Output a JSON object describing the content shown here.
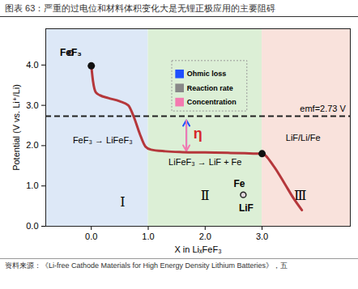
{
  "chart_data": {
    "type": "line",
    "title": "图表 63：严重的过电位和材料体积变化大是无锂正极应用的主要阻碍",
    "caption": "资料来源：《Li-free Cathode Materials for High Energy Density Lithium Batteries》，五",
    "x_label": "X in LiₓFeF₃",
    "y_label": "Potential (V vs. Li⁺/Li)",
    "xlim": [
      -0.8,
      4.55
    ],
    "ylim": [
      0,
      4.9
    ],
    "xticks": [
      0,
      1,
      2,
      3
    ],
    "yticks": [
      0,
      1,
      2,
      3,
      4
    ],
    "grid": false,
    "series": [
      {
        "name": "FeF₃",
        "color": "#b5373b",
        "x": [
          0,
          0.03,
          0.08,
          0.15,
          0.3,
          0.5,
          0.65,
          0.75,
          0.85,
          0.95,
          1.05,
          1.3,
          1.6,
          2.0,
          2.4,
          2.7,
          2.9,
          3.0,
          3.2,
          3.4,
          3.55,
          3.7
        ],
        "values": [
          3.98,
          3.6,
          3.32,
          3.25,
          3.18,
          3.1,
          3.0,
          2.7,
          2.3,
          1.98,
          1.9,
          1.86,
          1.84,
          1.83,
          1.82,
          1.81,
          1.8,
          1.8,
          1.5,
          1.05,
          0.7,
          0.4
        ]
      }
    ],
    "points": [
      {
        "x": 0,
        "y": 3.98
      },
      {
        "x": 3,
        "y": 1.8
      }
    ],
    "regions": [
      {
        "label": "Ⅰ",
        "x": [
          -0.8,
          1
        ],
        "color": "#dde8f7"
      },
      {
        "label": "Ⅱ",
        "x": [
          1,
          3
        ],
        "color": "#dcefd6"
      },
      {
        "label": "Ⅲ",
        "x": [
          3,
          4.55
        ],
        "color": "#f9e2dc"
      }
    ],
    "emf": {
      "value": 2.73,
      "label": "emf=2.73 V"
    },
    "overpotential": {
      "label": "η",
      "color": "#d62728",
      "legend": [
        {
          "name": "Ohmic loss",
          "color": "#1f4fff"
        },
        {
          "name": "Reaction rate",
          "color": "#888888"
        },
        {
          "name": "Concentration",
          "color": "#f47ab0"
        }
      ]
    },
    "annotations": [
      "FeF₃ → LiFeF₃",
      "LiFeF₃ → LiF + Fe",
      "LiF/Li/Fe"
    ],
    "insets": [
      {
        "labels": [
          "FeF₃"
        ],
        "color": "#f4c4c4"
      },
      {
        "labels": [
          "Fe",
          "LiF"
        ],
        "color": "#e0d6dc"
      }
    ]
  }
}
